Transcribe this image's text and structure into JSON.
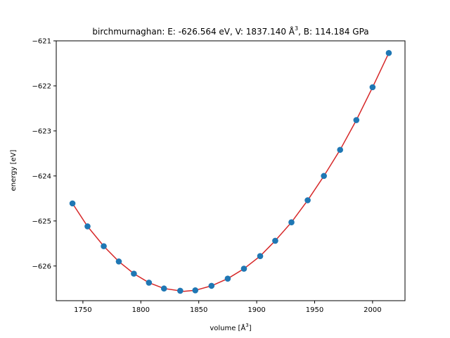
{
  "chart_data": {
    "type": "scatter",
    "title_parts": {
      "prefix": "birchmurnaghan: E: -626.564 eV, V: 1837.140 Å",
      "superscript": "3",
      "suffix": ", B: 114.184 GPa"
    },
    "xlabel_parts": {
      "prefix": "volume [Å",
      "superscript": "3",
      "suffix": "]"
    },
    "ylabel": "energy [eV]",
    "xlim": [
      1727,
      2028
    ],
    "ylim": [
      -626.77,
      -621.0
    ],
    "xticks": [
      1750,
      1800,
      1850,
      1900,
      1950,
      2000
    ],
    "yticks": [
      -626,
      -625,
      -624,
      -623,
      -622,
      -621
    ],
    "xtick_labels": [
      "1750",
      "1800",
      "1850",
      "1900",
      "1950",
      "2000"
    ],
    "ytick_labels": [
      "−626",
      "−625",
      "−624",
      "−623",
      "−622",
      "−621"
    ],
    "grid": false,
    "series": [
      {
        "kind": "points",
        "color": "#1f77b4",
        "x": [
          1741,
          1754,
          1768,
          1781,
          1794,
          1807,
          1820,
          1834,
          1847,
          1861,
          1875,
          1889,
          1903,
          1916,
          1930,
          1944,
          1958,
          1972,
          1986,
          2000,
          2014
        ],
        "y": [
          -624.61,
          -625.12,
          -625.56,
          -625.9,
          -626.17,
          -626.37,
          -626.5,
          -626.55,
          -626.54,
          -626.44,
          -626.28,
          -626.06,
          -625.78,
          -625.44,
          -625.03,
          -624.54,
          -624.0,
          -623.42,
          -622.76,
          -622.03,
          -621.27
        ]
      },
      {
        "kind": "fit-line",
        "color": "#d62728",
        "x": [
          1741,
          1754,
          1768,
          1781,
          1794,
          1807,
          1820,
          1837,
          1847,
          1861,
          1875,
          1889,
          1903,
          1916,
          1930,
          1944,
          1958,
          1972,
          1986,
          2000,
          2014
        ],
        "y": [
          -624.61,
          -625.12,
          -625.56,
          -625.9,
          -626.17,
          -626.37,
          -626.5,
          -626.564,
          -626.54,
          -626.44,
          -626.28,
          -626.06,
          -625.78,
          -625.44,
          -625.03,
          -624.54,
          -624.0,
          -623.42,
          -622.76,
          -622.03,
          -621.27
        ]
      }
    ]
  }
}
